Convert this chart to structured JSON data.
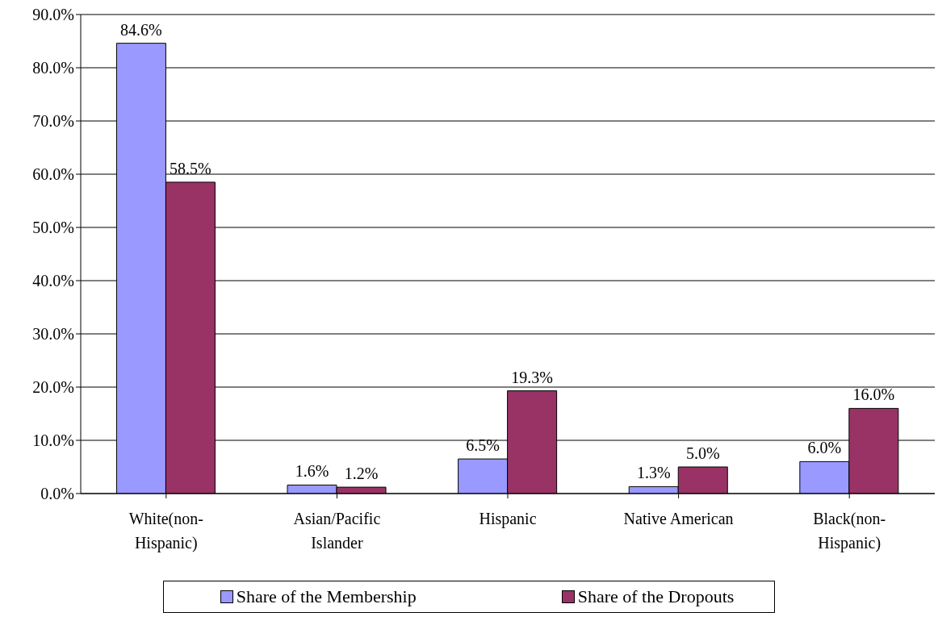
{
  "chart_data": {
    "type": "bar",
    "categories": [
      "White(non-Hispanic)",
      "Asian/Pacific Islander",
      "Hispanic",
      "Native American",
      "Black(non-Hispanic)"
    ],
    "series": [
      {
        "name": "Share of the Membership",
        "color": "#9999ff",
        "values": [
          84.6,
          1.6,
          6.5,
          1.3,
          6.0
        ],
        "value_labels": [
          "84.6%",
          "1.6%",
          "6.5%",
          "1.3%",
          "6.0%"
        ]
      },
      {
        "name": "Share of the Dropouts",
        "color": "#993366",
        "values": [
          58.5,
          1.2,
          19.3,
          5.0,
          16.0
        ],
        "value_labels": [
          "58.5%",
          "1.2%",
          "19.3%",
          "5.0%",
          "16.0%"
        ]
      }
    ],
    "ylim": [
      0,
      90
    ],
    "yticks": [
      {
        "value": 0,
        "label": "0.0%"
      },
      {
        "value": 10,
        "label": "10.0%"
      },
      {
        "value": 20,
        "label": "20.0%"
      },
      {
        "value": 30,
        "label": "30.0%"
      },
      {
        "value": 40,
        "label": "40.0%"
      },
      {
        "value": 50,
        "label": "50.0%"
      },
      {
        "value": 60,
        "label": "60.0%"
      },
      {
        "value": 70,
        "label": "70.0%"
      },
      {
        "value": 80,
        "label": "80.0%"
      },
      {
        "value": 90,
        "label": "90.0%"
      }
    ],
    "grid": "y",
    "legend": "bottom"
  }
}
